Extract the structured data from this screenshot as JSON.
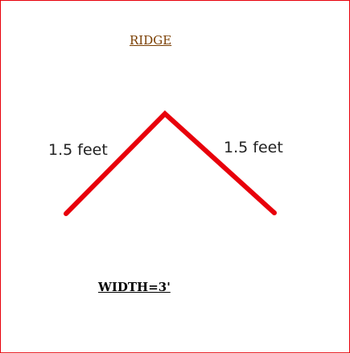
{
  "title": "RIDGE",
  "left_side_label": "1.5 feet",
  "right_side_label": "1.5 feet",
  "width_label": "WIDTH=3'",
  "colors": {
    "ridge_line": "#e8000b",
    "border": "#e8000b",
    "title": "#7a3e00",
    "text": "#222222"
  }
}
